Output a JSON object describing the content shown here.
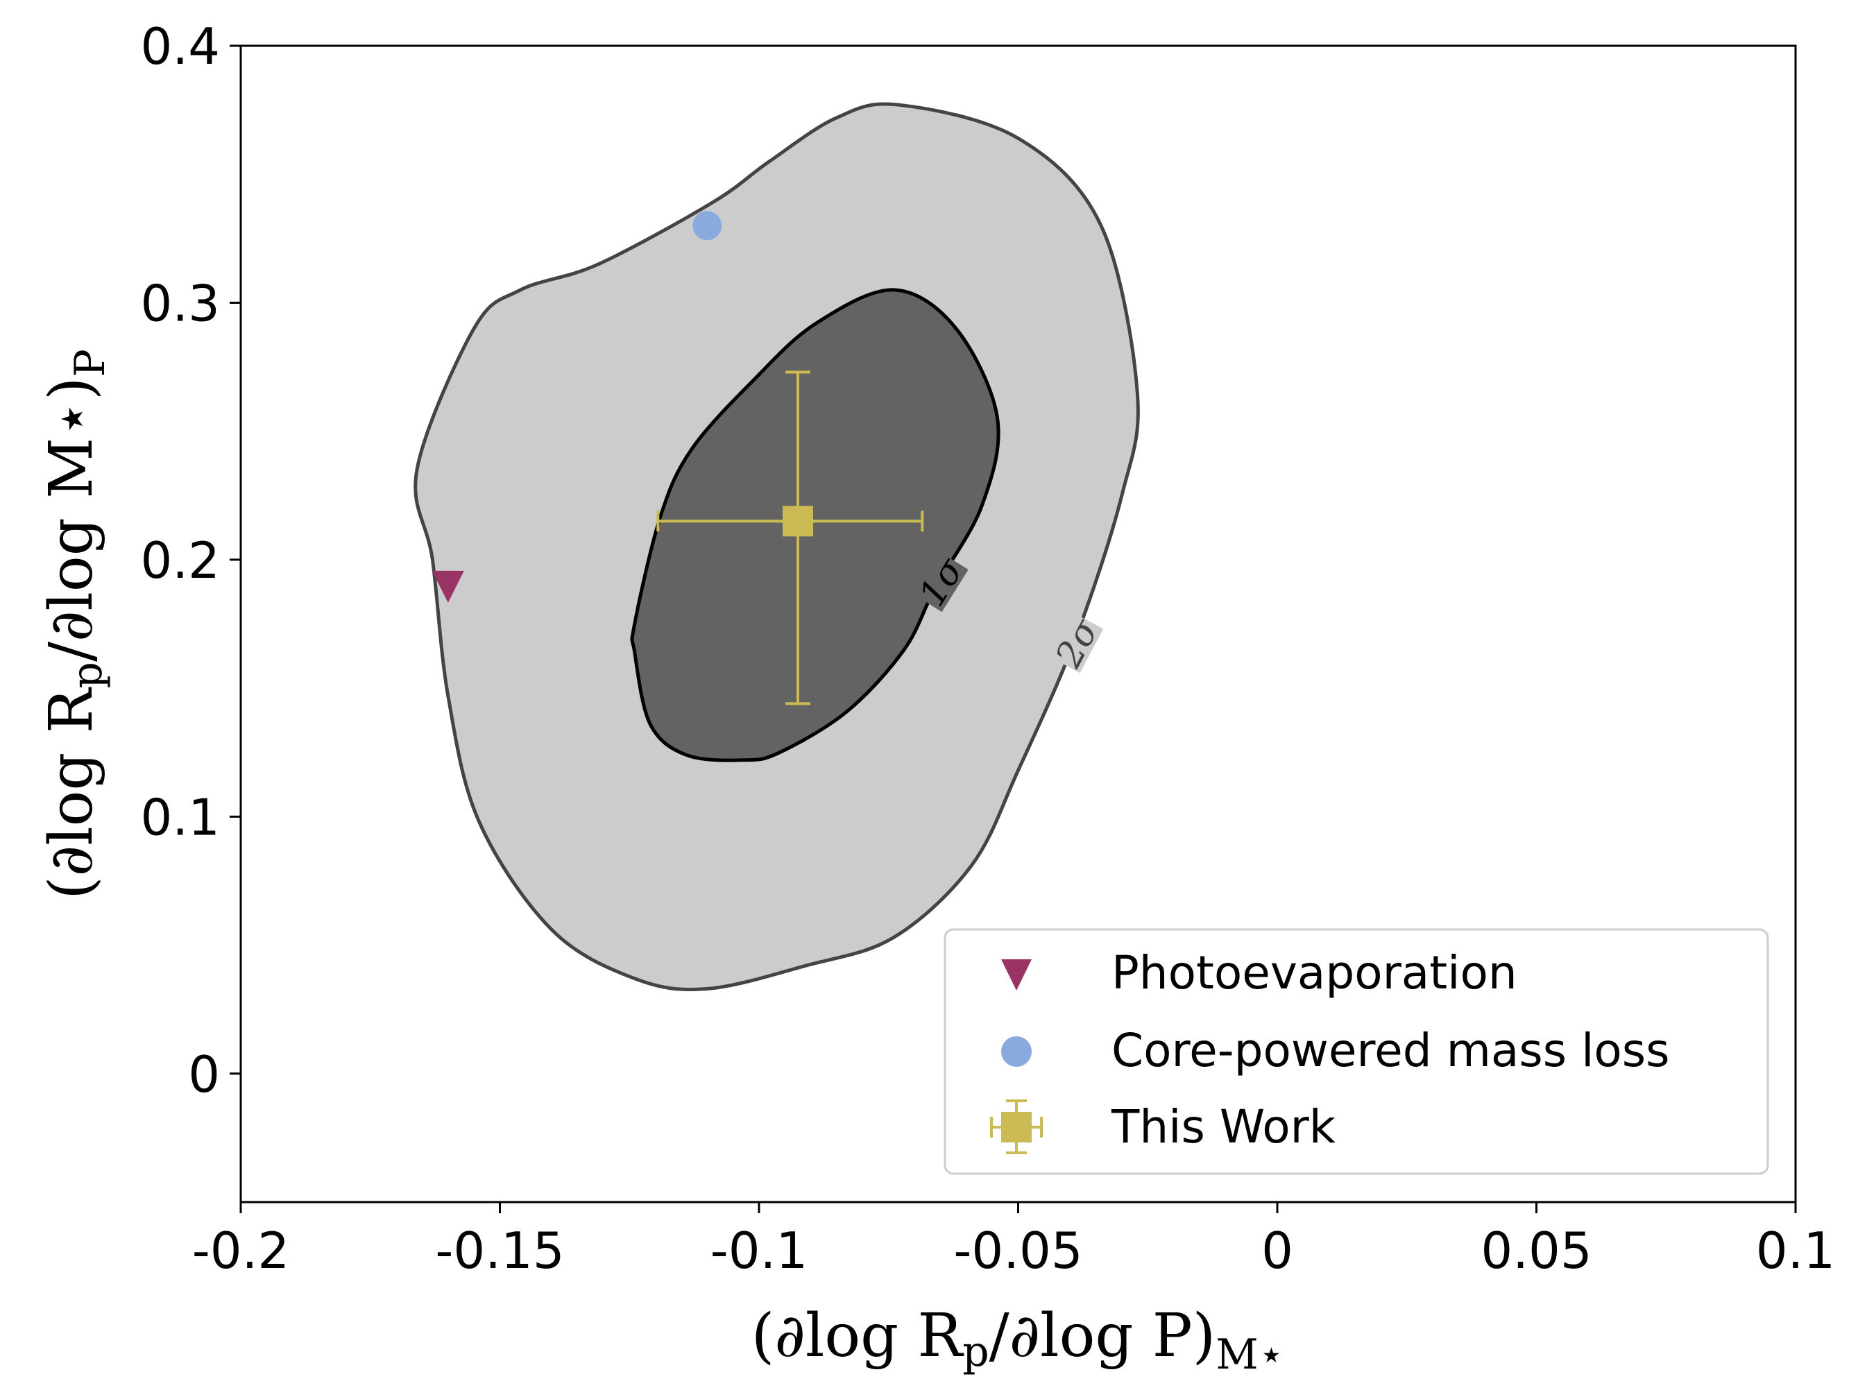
{
  "chart_data": {
    "type": "scatter",
    "title": "",
    "xlabel": "(∂log R_p/∂log P)_M⋆",
    "ylabel": "(∂log R_p/∂log M⋆)_P",
    "xlabel_parts": {
      "main": "(∂log R",
      "sub1": "p",
      "mid": "/∂log P)",
      "sub2": "M⋆"
    },
    "ylabel_parts": {
      "main": "(∂log R",
      "sub1": "p",
      "mid": "/∂log M⋆)",
      "sub2": "P"
    },
    "xlim": [
      -0.2,
      0.1
    ],
    "ylim": [
      -0.05,
      0.4
    ],
    "xticks": [
      -0.2,
      -0.15,
      -0.1,
      -0.05,
      0,
      0.05,
      0.1
    ],
    "xtick_labels": [
      "-0.2",
      "-0.15",
      "-0.1",
      "-0.05",
      "0",
      "0.05",
      "0.1"
    ],
    "yticks": [
      0,
      0.1,
      0.2,
      0.3,
      0.4
    ],
    "ytick_labels": [
      "0",
      "0.1",
      "0.2",
      "0.3",
      "0.4"
    ],
    "grid": false,
    "legend_position": "bottom-right",
    "colors": {
      "photoevaporation": "#993366",
      "core_powered": "#88aadd",
      "this_work": "#ccbb55",
      "contour_1sigma_fill": "#636363",
      "contour_2sigma_fill": "#cccccc",
      "contour_1sigma_line": "#000000",
      "contour_2sigma_line": "#444444"
    },
    "series": [
      {
        "name": "Photoevaporation",
        "marker": "triangle-down",
        "x": -0.16,
        "y": 0.19
      },
      {
        "name": "Core-powered mass loss",
        "marker": "circle",
        "x": -0.11,
        "y": 0.33
      },
      {
        "name": "This Work",
        "marker": "square",
        "x": -0.0925,
        "y": 0.215,
        "xerr_low": 0.027,
        "xerr_high": 0.024,
        "yerr_low": 0.071,
        "yerr_high": 0.058
      }
    ],
    "contours": [
      {
        "label": "2σ",
        "level": "2σ",
        "points": [
          [
            -0.073,
            0.377
          ],
          [
            -0.05,
            0.364
          ],
          [
            -0.034,
            0.33
          ],
          [
            -0.027,
            0.265
          ],
          [
            -0.03,
            0.225
          ],
          [
            -0.039,
            0.169
          ],
          [
            -0.05,
            0.118
          ],
          [
            -0.059,
            0.081
          ],
          [
            -0.074,
            0.053
          ],
          [
            -0.091,
            0.042
          ],
          [
            -0.11,
            0.033
          ],
          [
            -0.124,
            0.037
          ],
          [
            -0.14,
            0.056
          ],
          [
            -0.154,
            0.098
          ],
          [
            -0.16,
            0.147
          ],
          [
            -0.163,
            0.2
          ],
          [
            -0.166,
            0.235
          ],
          [
            -0.155,
            0.29
          ],
          [
            -0.146,
            0.305
          ],
          [
            -0.131,
            0.315
          ],
          [
            -0.109,
            0.339
          ],
          [
            -0.098,
            0.355
          ],
          [
            -0.085,
            0.372
          ]
        ]
      },
      {
        "label": "1σ",
        "level": "1σ",
        "points": [
          [
            -0.074,
            0.305
          ],
          [
            -0.062,
            0.29
          ],
          [
            -0.054,
            0.255
          ],
          [
            -0.057,
            0.221
          ],
          [
            -0.066,
            0.189
          ],
          [
            -0.072,
            0.165
          ],
          [
            -0.083,
            0.141
          ],
          [
            -0.096,
            0.125
          ],
          [
            -0.103,
            0.122
          ],
          [
            -0.114,
            0.124
          ],
          [
            -0.121,
            0.136
          ],
          [
            -0.124,
            0.164
          ],
          [
            -0.124,
            0.175
          ],
          [
            -0.119,
            0.217
          ],
          [
            -0.113,
            0.243
          ],
          [
            -0.101,
            0.27
          ],
          [
            -0.089,
            0.292
          ]
        ]
      }
    ],
    "legend": [
      {
        "label": "Photoevaporation",
        "marker": "triangle-down"
      },
      {
        "label": "Core-powered mass loss",
        "marker": "circle"
      },
      {
        "label": "This Work",
        "marker": "square-errorbar"
      }
    ]
  }
}
